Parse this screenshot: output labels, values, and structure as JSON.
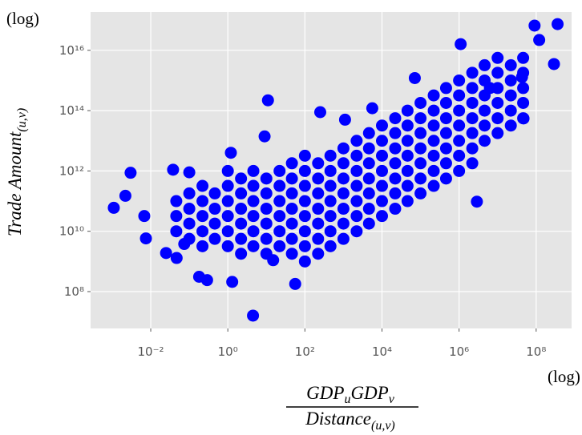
{
  "chart_data": {
    "type": "scatter",
    "y_label": {
      "text": "Trade Amount",
      "sub": "(u,v)"
    },
    "x_label": {
      "numerator": [
        {
          "text": "GDP",
          "sub": "u"
        },
        {
          "text": "GDP",
          "sub": "v"
        }
      ],
      "denominator": {
        "text": "Distance",
        "sub": "(u,v)"
      }
    },
    "annotations": [
      "(log)",
      "(log)"
    ],
    "log_x": true,
    "log_y": true,
    "grid": true,
    "color": "#0000ff",
    "xlim": [
      0.000275,
      830000000.0
    ],
    "ylim": [
      6000000.0,
      1.86e+17
    ],
    "xticks": [
      {
        "value": 0.01,
        "label": "10⁻²"
      },
      {
        "value": 1,
        "label": "10⁰"
      },
      {
        "value": 100.0,
        "label": "10²"
      },
      {
        "value": 10000.0,
        "label": "10⁴"
      },
      {
        "value": 1000000.0,
        "label": "10⁶"
      },
      {
        "value": 100000000.0,
        "label": "10⁸"
      }
    ],
    "yticks": [
      {
        "value": 100000000.0,
        "label": "10⁸"
      },
      {
        "value": 10000000000.0,
        "label": "10¹⁰"
      },
      {
        "value": 1000000000000.0,
        "label": "10¹²"
      },
      {
        "value": 100000000000000.0,
        "label": "10¹⁴"
      },
      {
        "value": 1e+16,
        "label": "10¹⁶"
      }
    ],
    "x": [
      0.046,
      0.046,
      0.046,
      0.1,
      0.1,
      0.1,
      0.1,
      0.22,
      0.22,
      0.22,
      0.22,
      0.22,
      0.46,
      0.46,
      0.46,
      0.46,
      1,
      1,
      1,
      1,
      1,
      1,
      2.2,
      2.2,
      2.2,
      2.2,
      2.2,
      2.2,
      4.6,
      4.6,
      4.6,
      4.6,
      4.6,
      4.6,
      10,
      10,
      10,
      10,
      10,
      10,
      22,
      22,
      22,
      22,
      22,
      22,
      46,
      46,
      46,
      46,
      46,
      46,
      46,
      100,
      100,
      100,
      100,
      100,
      100,
      100,
      100,
      220,
      220,
      220,
      220,
      220,
      220,
      220,
      460,
      460,
      460,
      460,
      460,
      460,
      460,
      1000,
      1000,
      1000,
      1000,
      1000,
      1000,
      1000,
      2200,
      2200,
      2200,
      2200,
      2200,
      2200,
      2200,
      4600,
      4600,
      4600,
      4600,
      4600,
      4600,
      4600,
      10000.0,
      10000.0,
      10000.0,
      10000.0,
      10000.0,
      10000.0,
      10000.0,
      22000.0,
      22000.0,
      22000.0,
      22000.0,
      22000.0,
      22000.0,
      22000.0,
      46000.0,
      46000.0,
      46000.0,
      46000.0,
      46000.0,
      46000.0,
      46000.0,
      100000.0,
      100000.0,
      100000.0,
      100000.0,
      100000.0,
      100000.0,
      100000.0,
      220000.0,
      220000.0,
      220000.0,
      220000.0,
      220000.0,
      220000.0,
      220000.0,
      460000.0,
      460000.0,
      460000.0,
      460000.0,
      460000.0,
      460000.0,
      460000.0,
      1000000.0,
      1000000.0,
      1000000.0,
      1000000.0,
      1000000.0,
      1000000.0,
      1000000.0,
      2200000.0,
      2200000.0,
      2200000.0,
      2200000.0,
      2200000.0,
      2200000.0,
      2200000.0,
      4600000.0,
      4600000.0,
      4600000.0,
      4600000.0,
      4600000.0,
      4600000.0,
      10000000.0,
      10000000.0,
      10000000.0,
      10000000.0,
      10000000.0,
      10000000.0,
      22000000.0,
      22000000.0,
      22000000.0,
      22000000.0,
      22000000.0,
      46000000.0,
      46000000.0,
      46000000.0,
      46000000.0,
      46000000.0,
      0.0011,
      0.0022,
      0.003,
      0.0075,
      0.025,
      0.038,
      0.18,
      0.29,
      1.3,
      4.5,
      11,
      56,
      250,
      5600,
      71000.0,
      1100000.0,
      2900000.0,
      47000000.0,
      91000000.0,
      290000000.0,
      360000000.0,
      120000000.0,
      43000000.0,
      6300000.0,
      0.1,
      1.2,
      9,
      1100,
      0.0068,
      0.074,
      0.047,
      15
    ],
    "y": [
      10000000000.0,
      32000000000.0,
      100000000000.0,
      5600000000.0,
      18000000000.0,
      56000000000.0,
      180000000000.0,
      3200000000.0,
      10000000000.0,
      32000000000.0,
      100000000000.0,
      320000000000.0,
      5600000000.0,
      18000000000.0,
      56000000000.0,
      180000000000.0,
      3200000000.0,
      10000000000.0,
      32000000000.0,
      100000000000.0,
      320000000000.0,
      1000000000000.0,
      1800000000.0,
      5600000000.0,
      18000000000.0,
      56000000000.0,
      180000000000.0,
      560000000000.0,
      3200000000.0,
      10000000000.0,
      32000000000.0,
      100000000000.0,
      320000000000.0,
      1000000000000.0,
      1800000000.0,
      5600000000.0,
      18000000000.0,
      56000000000.0,
      180000000000.0,
      560000000000.0,
      3200000000.0,
      10000000000.0,
      32000000000.0,
      100000000000.0,
      320000000000.0,
      1000000000000.0,
      1800000000.0,
      5600000000.0,
      18000000000.0,
      56000000000.0,
      180000000000.0,
      560000000000.0,
      1800000000000.0,
      1000000000.0,
      3200000000.0,
      10000000000.0,
      32000000000.0,
      100000000000.0,
      320000000000.0,
      1000000000000.0,
      3200000000000.0,
      1800000000.0,
      5600000000.0,
      18000000000.0,
      56000000000.0,
      180000000000.0,
      560000000000.0,
      1800000000000.0,
      3200000000.0,
      10000000000.0,
      32000000000.0,
      100000000000.0,
      320000000000.0,
      1000000000000.0,
      3200000000000.0,
      5600000000.0,
      18000000000.0,
      56000000000.0,
      180000000000.0,
      560000000000.0,
      1800000000000.0,
      5600000000000.0,
      10000000000.0,
      32000000000.0,
      100000000000.0,
      320000000000.0,
      1000000000000.0,
      3200000000000.0,
      10000000000000.0,
      18000000000.0,
      56000000000.0,
      180000000000.0,
      560000000000.0,
      1800000000000.0,
      5600000000000.0,
      18000000000000.0,
      32000000000.0,
      100000000000.0,
      320000000000.0,
      1000000000000.0,
      3200000000000.0,
      10000000000000.0,
      32000000000000.0,
      56000000000.0,
      180000000000.0,
      560000000000.0,
      1800000000000.0,
      5600000000000.0,
      18000000000000.0,
      56000000000000.0,
      100000000000.0,
      320000000000.0,
      1000000000000.0,
      3200000000000.0,
      10000000000000.0,
      32000000000000.0,
      100000000000000.0,
      180000000000.0,
      560000000000.0,
      1800000000000.0,
      5600000000000.0,
      18000000000000.0,
      56000000000000.0,
      180000000000000.0,
      320000000000.0,
      1000000000000.0,
      3200000000000.0,
      10000000000000.0,
      32000000000000.0,
      100000000000000.0,
      320000000000000.0,
      560000000000.0,
      1800000000000.0,
      5600000000000.0,
      18000000000000.0,
      56000000000000.0,
      180000000000000.0,
      560000000000000.0,
      1000000000000.0,
      3200000000000.0,
      10000000000000.0,
      32000000000000.0,
      100000000000000.0,
      320000000000000.0,
      1000000000000000.0,
      1800000000000.0,
      5600000000000.0,
      18000000000000.0,
      56000000000000.0,
      180000000000000.0,
      560000000000000.0,
      1800000000000000.0,
      10000000000000.0,
      32000000000000.0,
      100000000000000.0,
      320000000000000.0,
      1000000000000000.0,
      3200000000000000.0,
      18000000000000.0,
      56000000000000.0,
      180000000000000.0,
      560000000000000.0,
      1800000000000000.0,
      5600000000000000.0,
      32000000000000.0,
      100000000000000.0,
      320000000000000.0,
      1000000000000000.0,
      3200000000000000.0,
      56000000000000.0,
      180000000000000.0,
      560000000000000.0,
      1800000000000000.0,
      5600000000000000.0,
      60000000000.0,
      150000000000.0,
      870000000000.0,
      5800000000.0,
      1900000000.0,
      1100000000000.0,
      310000000.0,
      240000000.0,
      210000000.0,
      16000000.0,
      220000000000000.0,
      180000000.0,
      89000000000000.0,
      120000000000000.0,
      1200000000000000.0,
      1.6e+16,
      96000000000.0,
      55000000000000.0,
      6.6e+16,
      3500000000000000.0,
      7.4e+16,
      2.2e+16,
      1300000000000000.0,
      560000000000000.0,
      900000000000.0,
      4000000000000.0,
      14000000000000.0,
      50000000000000.0,
      32000000000.0,
      3800000000.0,
      1300000000.0,
      1100000000.0
    ]
  }
}
